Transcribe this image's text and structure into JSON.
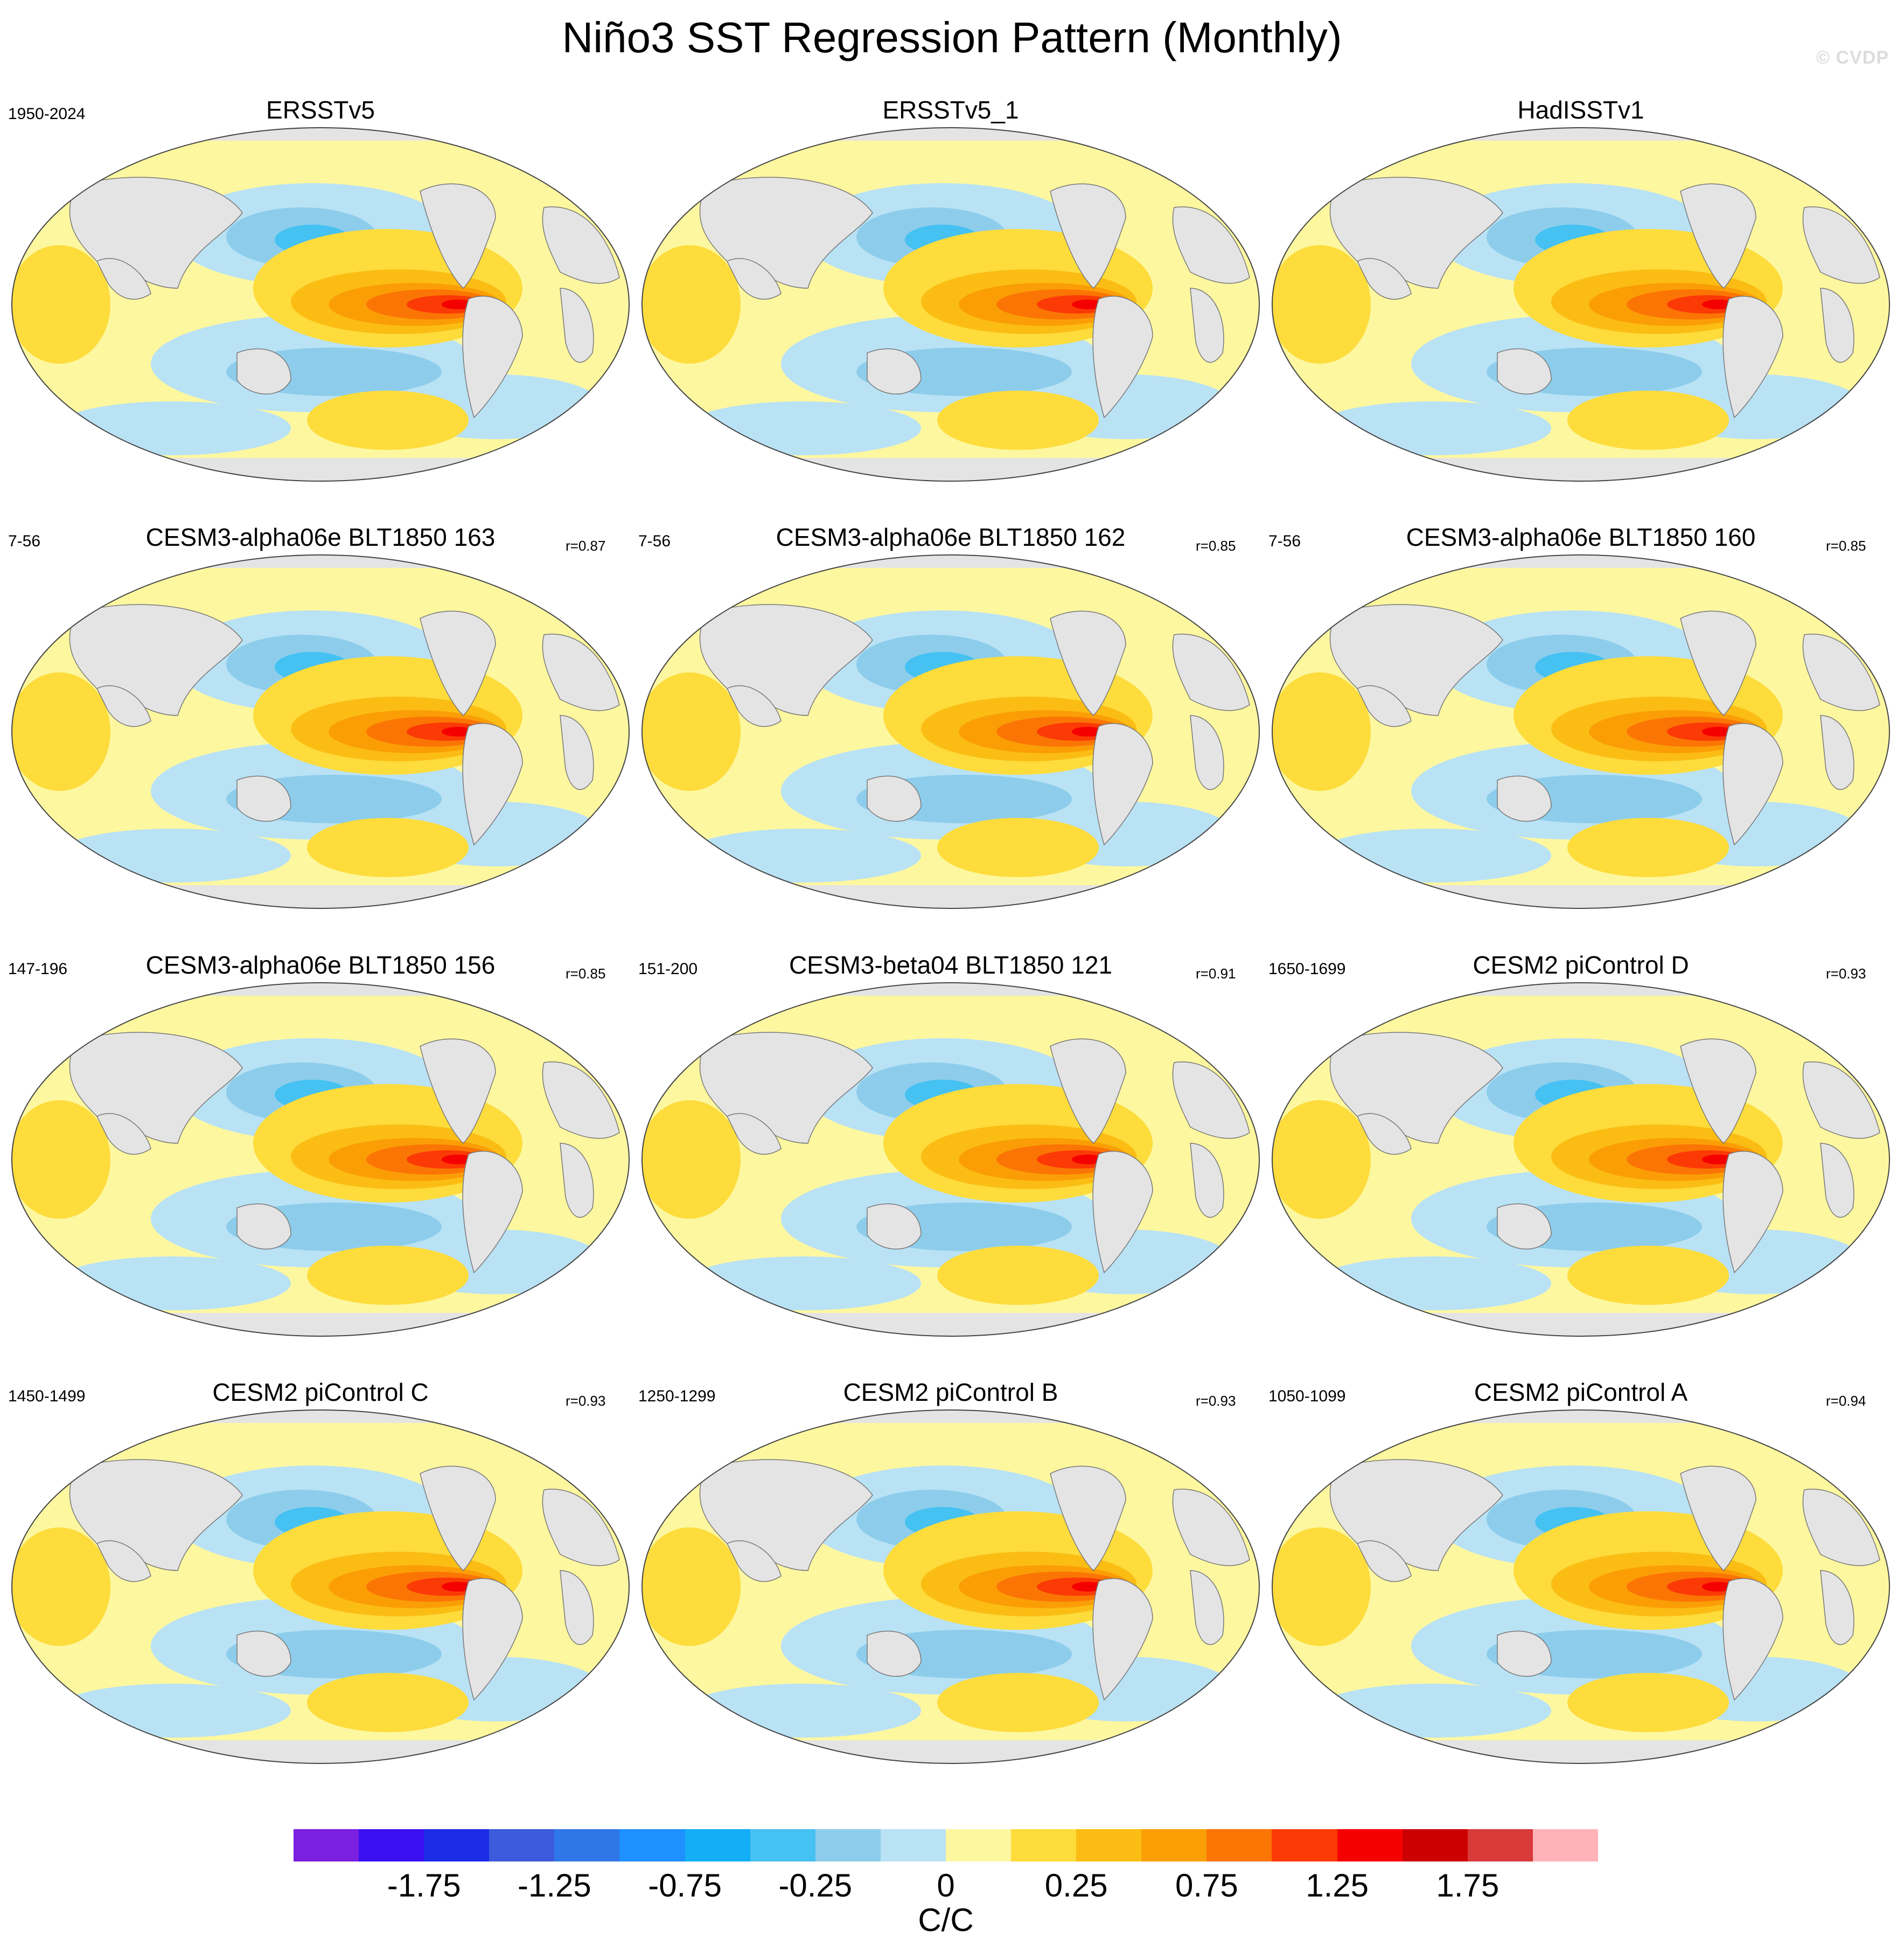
{
  "figure": {
    "title": "Niño3 SST Regression Pattern (Monthly)",
    "watermark": "© CVDP",
    "units": "C/C"
  },
  "panels": [
    {
      "title": "ERSSTv5",
      "period": "1950-2024",
      "r": ""
    },
    {
      "title": "ERSSTv5_1",
      "period": "",
      "r": ""
    },
    {
      "title": "HadISSTv1",
      "period": "",
      "r": ""
    },
    {
      "title": "CESM3-alpha06e BLT1850 163",
      "period": "7-56",
      "r": "r=0.87"
    },
    {
      "title": "CESM3-alpha06e BLT1850 162",
      "period": "7-56",
      "r": "r=0.85"
    },
    {
      "title": "CESM3-alpha06e BLT1850 160",
      "period": "7-56",
      "r": "r=0.85"
    },
    {
      "title": "CESM3-alpha06e BLT1850 156",
      "period": "147-196",
      "r": "r=0.85"
    },
    {
      "title": "CESM3-beta04 BLT1850 121",
      "period": "151-200",
      "r": "r=0.91"
    },
    {
      "title": "CESM2 piControl D",
      "period": "1650-1699",
      "r": "r=0.93"
    },
    {
      "title": "CESM2 piControl C",
      "period": "1450-1499",
      "r": "r=0.93"
    },
    {
      "title": "CESM2 piControl B",
      "period": "1250-1299",
      "r": "r=0.93"
    },
    {
      "title": "CESM2 piControl A",
      "period": "1050-1099",
      "r": "r=0.94"
    }
  ],
  "colorbar": {
    "colors": [
      "#7b1fe0",
      "#3a10f0",
      "#1c2be6",
      "#3b5bdc",
      "#2f77e8",
      "#1e90ff",
      "#13aef5",
      "#45c1f2",
      "#8dcdeb",
      "#b9e2f5",
      "#fdf7a0",
      "#fddc3c",
      "#fbbd14",
      "#fb9e06",
      "#fb7505",
      "#fb3a05",
      "#f50000",
      "#cc0000",
      "#d93a3a",
      "#ffb3b8"
    ],
    "labels": [
      "-1.75",
      "-1.25",
      "-0.75",
      "-0.25",
      "0",
      "0.25",
      "0.75",
      "1.25",
      "1.75"
    ]
  }
}
